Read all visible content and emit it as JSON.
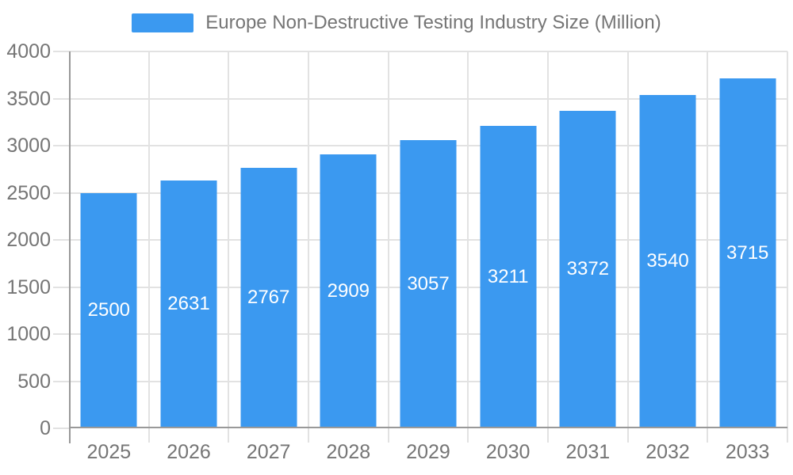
{
  "chart_data": {
    "type": "bar",
    "title": "Europe Non-Destructive Testing Industry Size (Million)",
    "categories": [
      "2025",
      "2026",
      "2027",
      "2028",
      "2029",
      "2030",
      "2031",
      "2032",
      "2033"
    ],
    "values": [
      2500,
      2631,
      2767,
      2909,
      3057,
      3211,
      3372,
      3540,
      3715
    ],
    "series": [
      {
        "name": "Europe Non-Destructive Testing Industry Size (Million)",
        "values": [
          2500,
          2631,
          2767,
          2909,
          3057,
          3211,
          3372,
          3540,
          3715
        ]
      }
    ],
    "xlabel": "",
    "ylabel": "",
    "ylim": [
      0,
      4000
    ],
    "ytick_step": 500,
    "yticks": [
      0,
      500,
      1000,
      1500,
      2000,
      2500,
      3000,
      3500,
      4000
    ],
    "grid": true,
    "legend_position": "top-center",
    "bar_value_labels_visible": true
  },
  "colors": {
    "bar": "#3B99F0",
    "bar_label": "#FFFFFF",
    "axis_text": "#757575",
    "axis_line": "#999999",
    "gridline": "#E2E2E2",
    "background": "#FFFFFF"
  }
}
